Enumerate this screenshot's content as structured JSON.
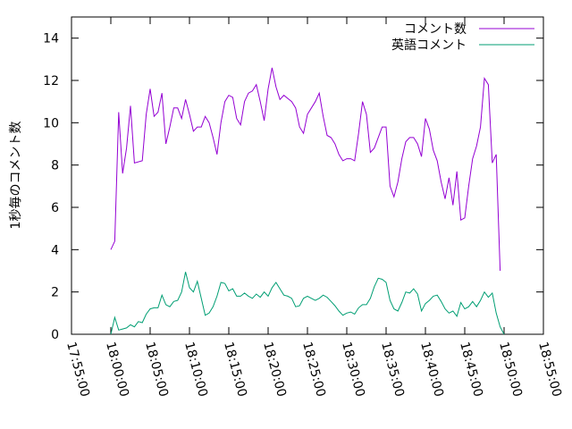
{
  "chart_data": {
    "type": "line",
    "ylabel": "1秒毎のコメント数",
    "xlabel": "",
    "ylim": [
      0,
      15
    ],
    "xlim": [
      "17:55:00",
      "18:55:00"
    ],
    "x_ticks": [
      "17:55:00",
      "18:00:00",
      "18:05:00",
      "18:10:00",
      "18:15:00",
      "18:20:00",
      "18:25:00",
      "18:30:00",
      "18:35:00",
      "18:40:00",
      "18:45:00",
      "18:50:00",
      "18:55:00"
    ],
    "y_ticks": [
      0,
      2,
      4,
      6,
      8,
      10,
      12,
      14
    ],
    "grid": false,
    "legend_position": "top-right",
    "series": [
      {
        "name": "コメント数",
        "color": "#9400d3",
        "points": [
          [
            "18:00:00",
            4.0
          ],
          [
            "18:00:30",
            4.4
          ],
          [
            "18:01:00",
            10.5
          ],
          [
            "18:01:30",
            7.6
          ],
          [
            "18:02:00",
            8.8
          ],
          [
            "18:02:30",
            10.8
          ],
          [
            "18:03:00",
            8.1
          ],
          [
            "18:04:00",
            8.2
          ],
          [
            "18:04:30",
            10.4
          ],
          [
            "18:05:00",
            11.6
          ],
          [
            "18:05:30",
            10.3
          ],
          [
            "18:06:00",
            10.5
          ],
          [
            "18:06:30",
            11.4
          ],
          [
            "18:07:00",
            9.0
          ],
          [
            "18:07:30",
            9.8
          ],
          [
            "18:08:00",
            10.7
          ],
          [
            "18:08:30",
            10.7
          ],
          [
            "18:09:00",
            10.2
          ],
          [
            "18:09:30",
            11.1
          ],
          [
            "18:10:00",
            10.4
          ],
          [
            "18:10:30",
            9.6
          ],
          [
            "18:11:00",
            9.8
          ],
          [
            "18:11:30",
            9.8
          ],
          [
            "18:12:00",
            10.3
          ],
          [
            "18:12:30",
            10.0
          ],
          [
            "18:13:00",
            9.3
          ],
          [
            "18:13:30",
            8.5
          ],
          [
            "18:14:00",
            10.0
          ],
          [
            "18:14:30",
            11.0
          ],
          [
            "18:15:00",
            11.3
          ],
          [
            "18:15:30",
            11.2
          ],
          [
            "18:16:00",
            10.2
          ],
          [
            "18:16:30",
            9.9
          ],
          [
            "18:17:00",
            11.0
          ],
          [
            "18:17:30",
            11.4
          ],
          [
            "18:18:00",
            11.5
          ],
          [
            "18:18:30",
            11.8
          ],
          [
            "18:19:00",
            11.0
          ],
          [
            "18:19:30",
            10.1
          ],
          [
            "18:20:00",
            11.6
          ],
          [
            "18:20:30",
            12.6
          ],
          [
            "18:21:00",
            11.7
          ],
          [
            "18:21:30",
            11.1
          ],
          [
            "18:22:00",
            11.3
          ],
          [
            "18:23:00",
            11.0
          ],
          [
            "18:23:30",
            10.7
          ],
          [
            "18:24:00",
            9.8
          ],
          [
            "18:24:30",
            9.5
          ],
          [
            "18:25:00",
            10.4
          ],
          [
            "18:25:30",
            10.7
          ],
          [
            "18:26:00",
            11.0
          ],
          [
            "18:26:30",
            11.4
          ],
          [
            "18:27:00",
            10.3
          ],
          [
            "18:27:30",
            9.4
          ],
          [
            "18:28:00",
            9.3
          ],
          [
            "18:28:30",
            9.0
          ],
          [
            "18:29:00",
            8.5
          ],
          [
            "18:29:30",
            8.2
          ],
          [
            "18:30:00",
            8.3
          ],
          [
            "18:30:30",
            8.3
          ],
          [
            "18:31:00",
            8.2
          ],
          [
            "18:31:30",
            9.5
          ],
          [
            "18:32:00",
            11.0
          ],
          [
            "18:32:30",
            10.4
          ],
          [
            "18:33:00",
            8.6
          ],
          [
            "18:33:30",
            8.8
          ],
          [
            "18:34:00",
            9.3
          ],
          [
            "18:34:30",
            9.8
          ],
          [
            "18:35:00",
            9.8
          ],
          [
            "18:35:30",
            7.0
          ],
          [
            "18:36:00",
            6.5
          ],
          [
            "18:36:30",
            7.2
          ],
          [
            "18:37:00",
            8.3
          ],
          [
            "18:37:30",
            9.1
          ],
          [
            "18:38:00",
            9.3
          ],
          [
            "18:38:30",
            9.3
          ],
          [
            "18:39:00",
            9.0
          ],
          [
            "18:39:30",
            8.4
          ],
          [
            "18:40:00",
            10.2
          ],
          [
            "18:40:30",
            9.7
          ],
          [
            "18:41:00",
            8.7
          ],
          [
            "18:41:30",
            8.2
          ],
          [
            "18:42:00",
            7.2
          ],
          [
            "18:42:30",
            6.4
          ],
          [
            "18:43:00",
            7.4
          ],
          [
            "18:43:30",
            6.1
          ],
          [
            "18:44:00",
            7.7
          ],
          [
            "18:44:30",
            5.4
          ],
          [
            "18:45:00",
            5.5
          ],
          [
            "18:45:30",
            7.0
          ],
          [
            "18:46:00",
            8.3
          ],
          [
            "18:46:30",
            8.9
          ],
          [
            "18:47:00",
            9.8
          ],
          [
            "18:47:30",
            12.1
          ],
          [
            "18:48:00",
            11.8
          ],
          [
            "18:48:30",
            8.1
          ],
          [
            "18:49:00",
            8.5
          ],
          [
            "18:49:30",
            3.0
          ]
        ]
      },
      {
        "name": "英語コメント",
        "color": "#009e73",
        "points": [
          [
            "18:00:00",
            0.0
          ],
          [
            "18:00:30",
            0.8
          ],
          [
            "18:01:00",
            0.2
          ],
          [
            "18:01:30",
            0.25
          ],
          [
            "18:02:00",
            0.3
          ],
          [
            "18:02:30",
            0.45
          ],
          [
            "18:03:00",
            0.35
          ],
          [
            "18:03:30",
            0.6
          ],
          [
            "18:04:00",
            0.55
          ],
          [
            "18:04:30",
            0.95
          ],
          [
            "18:05:00",
            1.2
          ],
          [
            "18:05:30",
            1.25
          ],
          [
            "18:06:00",
            1.25
          ],
          [
            "18:06:30",
            1.85
          ],
          [
            "18:07:00",
            1.4
          ],
          [
            "18:07:30",
            1.3
          ],
          [
            "18:08:00",
            1.55
          ],
          [
            "18:08:30",
            1.6
          ],
          [
            "18:09:00",
            2.0
          ],
          [
            "18:09:30",
            2.95
          ],
          [
            "18:10:00",
            2.2
          ],
          [
            "18:10:30",
            2.0
          ],
          [
            "18:11:00",
            2.5
          ],
          [
            "18:11:30",
            1.7
          ],
          [
            "18:12:00",
            0.9
          ],
          [
            "18:12:30",
            1.0
          ],
          [
            "18:13:00",
            1.3
          ],
          [
            "18:13:30",
            1.8
          ],
          [
            "18:14:00",
            2.45
          ],
          [
            "18:14:30",
            2.4
          ],
          [
            "18:15:00",
            2.05
          ],
          [
            "18:15:30",
            2.15
          ],
          [
            "18:16:00",
            1.8
          ],
          [
            "18:16:30",
            1.8
          ],
          [
            "18:17:00",
            1.95
          ],
          [
            "18:17:30",
            1.8
          ],
          [
            "18:18:00",
            1.7
          ],
          [
            "18:18:30",
            1.9
          ],
          [
            "18:19:00",
            1.75
          ],
          [
            "18:19:30",
            2.0
          ],
          [
            "18:20:00",
            1.8
          ],
          [
            "18:20:30",
            2.2
          ],
          [
            "18:21:00",
            2.45
          ],
          [
            "18:21:30",
            2.15
          ],
          [
            "18:22:00",
            1.85
          ],
          [
            "18:22:30",
            1.8
          ],
          [
            "18:23:00",
            1.7
          ],
          [
            "18:23:30",
            1.3
          ],
          [
            "18:24:00",
            1.35
          ],
          [
            "18:24:30",
            1.7
          ],
          [
            "18:25:00",
            1.8
          ],
          [
            "18:25:30",
            1.7
          ],
          [
            "18:26:00",
            1.6
          ],
          [
            "18:26:30",
            1.7
          ],
          [
            "18:27:00",
            1.85
          ],
          [
            "18:27:30",
            1.75
          ],
          [
            "18:28:00",
            1.55
          ],
          [
            "18:28:30",
            1.35
          ],
          [
            "18:29:00",
            1.1
          ],
          [
            "18:29:30",
            0.9
          ],
          [
            "18:30:00",
            1.0
          ],
          [
            "18:30:30",
            1.05
          ],
          [
            "18:31:00",
            0.95
          ],
          [
            "18:31:30",
            1.25
          ],
          [
            "18:32:00",
            1.4
          ],
          [
            "18:32:30",
            1.4
          ],
          [
            "18:33:00",
            1.7
          ],
          [
            "18:33:30",
            2.25
          ],
          [
            "18:34:00",
            2.65
          ],
          [
            "18:34:30",
            2.6
          ],
          [
            "18:35:00",
            2.45
          ],
          [
            "18:35:30",
            1.6
          ],
          [
            "18:36:00",
            1.2
          ],
          [
            "18:36:30",
            1.1
          ],
          [
            "18:37:00",
            1.5
          ],
          [
            "18:37:30",
            2.0
          ],
          [
            "18:38:00",
            1.95
          ],
          [
            "18:38:30",
            2.15
          ],
          [
            "18:39:00",
            1.9
          ],
          [
            "18:39:30",
            1.1
          ],
          [
            "18:40:00",
            1.45
          ],
          [
            "18:40:30",
            1.6
          ],
          [
            "18:41:00",
            1.8
          ],
          [
            "18:41:30",
            1.85
          ],
          [
            "18:42:00",
            1.55
          ],
          [
            "18:42:30",
            1.2
          ],
          [
            "18:43:00",
            1.0
          ],
          [
            "18:43:30",
            1.1
          ],
          [
            "18:44:00",
            0.85
          ],
          [
            "18:44:30",
            1.5
          ],
          [
            "18:45:00",
            1.2
          ],
          [
            "18:45:30",
            1.3
          ],
          [
            "18:46:00",
            1.55
          ],
          [
            "18:46:30",
            1.3
          ],
          [
            "18:47:00",
            1.6
          ],
          [
            "18:47:30",
            2.0
          ],
          [
            "18:48:00",
            1.75
          ],
          [
            "18:48:30",
            1.95
          ],
          [
            "18:49:00",
            1.0
          ],
          [
            "18:49:30",
            0.35
          ],
          [
            "18:50:00",
            0.0
          ]
        ]
      }
    ]
  }
}
